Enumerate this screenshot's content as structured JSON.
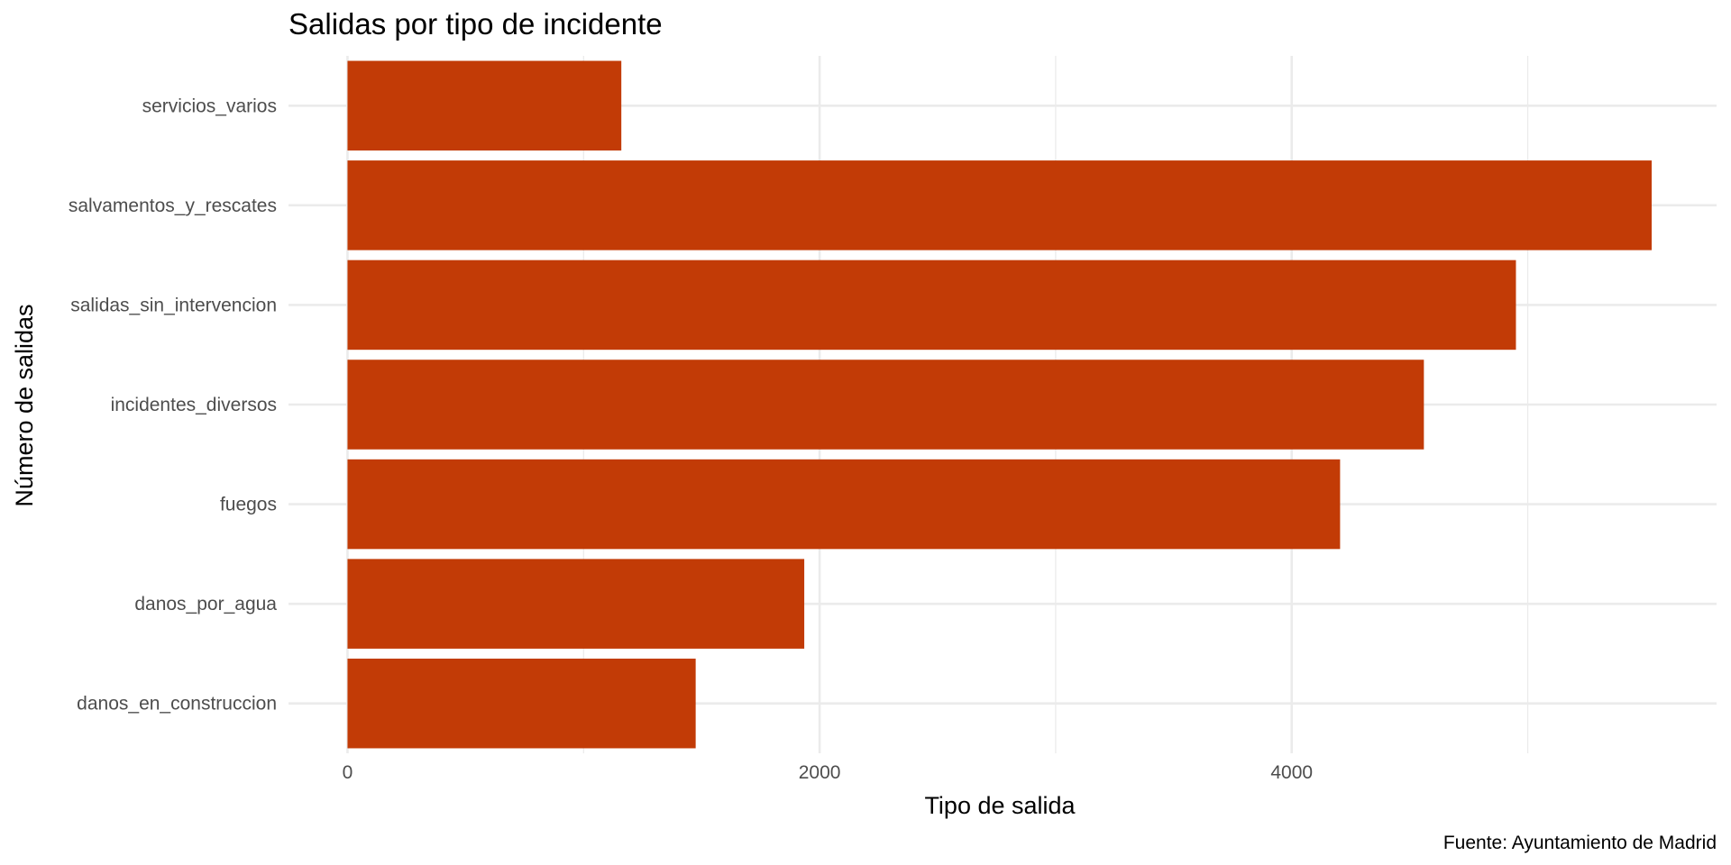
{
  "chart_data": {
    "type": "bar",
    "orientation": "horizontal",
    "title": "Salidas por tipo de incidente",
    "xlabel": "Tipo de salida",
    "ylabel": "Número de salidas",
    "caption": "Fuente: Ayuntamiento de Madrid",
    "categories": [
      "danos_en_construccion",
      "danos_por_agua",
      "fuegos",
      "incidentes_diversos",
      "salidas_sin_intervencion",
      "salvamentos_y_rescates",
      "servicios_varios"
    ],
    "values": [
      1475,
      1935,
      4205,
      4560,
      4950,
      5525,
      1160
    ],
    "xlim": [
      -250,
      5800
    ],
    "x_ticks": [
      0,
      2000,
      4000
    ],
    "x_tick_labels": [
      "0",
      "2000",
      "4000"
    ],
    "minor_grid": [
      1000,
      3000,
      5000
    ],
    "grid": true,
    "legend": "none",
    "bar_color": "#C23B06"
  }
}
